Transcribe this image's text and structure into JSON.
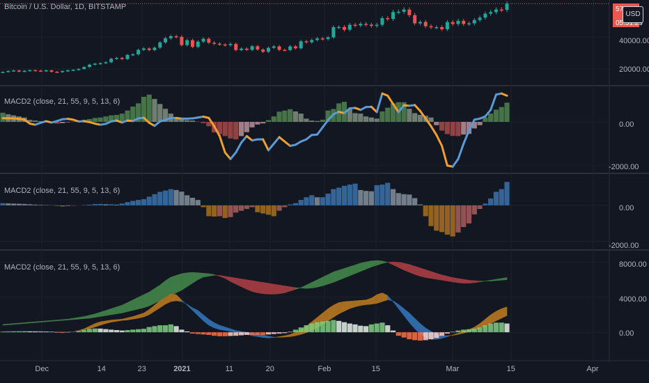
{
  "colors": {
    "background": "#131722",
    "grid": "#1e222d",
    "separator": "#2a2e39",
    "candle_up": "#26a69a",
    "candle_down": "#ef5350",
    "macd_blue": "#5b9bd5",
    "macd_orange": "#f0a030",
    "hist_green": "#5a9a5a",
    "hist_red": "#c0504d",
    "price_tag": "#f05650"
  },
  "header": {
    "symbol_title": "Bitcoin / U.S. Dollar, 1D, BITSTAMP",
    "price_tag_top": "57..25",
    "price_tag_bottom": "05:51:29",
    "currency_badge": "USD"
  },
  "panes": [
    {
      "title": "",
      "ticks": [
        "40000.00",
        "20000.00"
      ]
    },
    {
      "title": "MACD2 (close, 21, 55, 9, 5, 13, 6)",
      "ticks": [
        "0.00",
        "-2000.00"
      ]
    },
    {
      "title": "MACD2 (close, 21, 55, 9, 5, 13, 6)",
      "ticks": [
        "0.00",
        "-2000.00"
      ]
    },
    {
      "title": "MACD2 (close, 21, 55, 9, 5, 13, 6)",
      "ticks": [
        "8000.00",
        "4000.00",
        "0.00"
      ]
    }
  ],
  "time_axis": [
    "Dec",
    "14",
    "23",
    "2021",
    "11",
    "20",
    "Feb",
    "15",
    "Mar",
    "15",
    "Apr"
  ],
  "chart_data": [
    {
      "type": "candlestick",
      "title": "Bitcoin / U.S. Dollar, 1D, BITSTAMP",
      "ylim": [
        10000,
        60000
      ],
      "x_ticks": [
        "Dec",
        "14",
        "23",
        "2021",
        "11",
        "20",
        "Feb",
        "15",
        "Mar",
        "15",
        "Apr"
      ],
      "close": [
        18200,
        18800,
        19100,
        18400,
        18900,
        19300,
        19000,
        18700,
        19200,
        18300,
        18100,
        18700,
        19200,
        19500,
        20100,
        21300,
        22800,
        23400,
        23700,
        24300,
        26500,
        27000,
        26300,
        28900,
        29300,
        32100,
        33000,
        32000,
        33500,
        36800,
        39400,
        40700,
        40300,
        35100,
        38200,
        34000,
        37300,
        39100,
        36600,
        36000,
        35500,
        35100,
        35800,
        32000,
        32900,
        32100,
        34400,
        32300,
        30900,
        33400,
        34300,
        32100,
        32000,
        34300,
        33100,
        37500,
        36900,
        38300,
        39300,
        38900,
        40000,
        46400,
        46500,
        44800,
        47900,
        47500,
        48500,
        48000,
        47200,
        47900,
        52100,
        51600,
        55900,
        56100,
        57500,
        54000,
        48800,
        49700,
        47000,
        46300,
        46400,
        45100,
        49600,
        48400,
        50400,
        48400,
        48800,
        50900,
        52400,
        54900,
        55900,
        57500,
        57300,
        61200
      ]
    },
    {
      "type": "line+histogram",
      "title": "MACD2 (close, 21, 55, 9, 5, 13, 6)",
      "ylim": [
        -2200,
        1500
      ],
      "macd": [
        170,
        165,
        160,
        140,
        100,
        -80,
        -130,
        -40,
        30,
        -30,
        40,
        120,
        140,
        100,
        20,
        30,
        -10,
        -80,
        -130,
        -90,
        20,
        60,
        -30,
        60,
        40,
        160,
        190,
        -40,
        -180,
        20,
        90,
        180,
        180,
        150,
        150,
        160,
        200,
        240,
        180,
        -200,
        -650,
        -1400,
        -1700,
        -1400,
        -950,
        -650,
        -850,
        -800,
        -800,
        -1300,
        -1000,
        -700,
        -900,
        -1100,
        -1050,
        -900,
        -800,
        -600,
        -580,
        -250,
        80,
        350,
        460,
        400,
        620,
        640,
        550,
        680,
        690,
        450,
        1300,
        1200,
        820,
        450,
        760,
        740,
        770,
        500,
        150,
        -200,
        -600,
        -1100,
        -2000,
        -2050,
        -1700,
        -1000,
        -400,
        100,
        150,
        250,
        550,
        1250,
        1300,
        1200
      ],
      "histogram": [
        420,
        350,
        300,
        250,
        200,
        90,
        60,
        30,
        -10,
        -50,
        -80,
        -60,
        -20,
        10,
        50,
        100,
        130,
        180,
        200,
        250,
        300,
        320,
        380,
        520,
        700,
        850,
        1150,
        1250,
        1050,
        820,
        600,
        380,
        200,
        110,
        80,
        60,
        10,
        -60,
        -200,
        -480,
        -560,
        -650,
        -760,
        -800,
        -650,
        -470,
        -250,
        -120,
        -70,
        80,
        250,
        470,
        520,
        580,
        480,
        380,
        150,
        60,
        40,
        100,
        520,
        590,
        850,
        920,
        600,
        400,
        380,
        250,
        200,
        150,
        480,
        650,
        850,
        900,
        900,
        600,
        400,
        320,
        280,
        200,
        -150,
        -400,
        -560,
        -640,
        -650,
        -580,
        -550,
        -300,
        -150,
        200,
        380,
        560,
        680,
        880
      ]
    },
    {
      "type": "histogram",
      "title": "MACD2 (close, 21, 55, 9, 5, 13, 6)",
      "ylim": [
        -2200,
        1500
      ],
      "values": [
        120,
        110,
        100,
        90,
        80,
        60,
        40,
        30,
        20,
        10,
        -30,
        -60,
        -40,
        -20,
        0,
        20,
        40,
        70,
        80,
        60,
        60,
        40,
        100,
        180,
        250,
        300,
        340,
        480,
        620,
        750,
        820,
        900,
        850,
        760,
        560,
        420,
        300,
        -100,
        -600,
        -620,
        -600,
        -700,
        -650,
        -400,
        -300,
        -200,
        -100,
        -380,
        -450,
        -520,
        -600,
        -300,
        -100,
        50,
        120,
        300,
        450,
        560,
        450,
        450,
        650,
        900,
        980,
        1080,
        1150,
        1200,
        850,
        800,
        780,
        1120,
        1150,
        1250,
        900,
        680,
        620,
        600,
        400,
        50,
        -600,
        -1150,
        -1400,
        -1480,
        -1620,
        -1720,
        -1500,
        -1200,
        -1000,
        -500,
        -200,
        100,
        380,
        750,
        900,
        1300
      ]
    },
    {
      "type": "area+histogram",
      "title": "MACD2 (close, 21, 55, 9, 5, 13, 6)",
      "ylim": [
        -1500,
        9000
      ],
      "slow_fast": [
        [
          800,
          900
        ],
        [
          850,
          950
        ],
        [
          900,
          1000
        ],
        [
          950,
          1050
        ],
        [
          1000,
          1100
        ],
        [
          1050,
          1150
        ],
        [
          1100,
          1200
        ],
        [
          1150,
          1250
        ],
        [
          1200,
          1300
        ],
        [
          1250,
          1350
        ],
        [
          1300,
          1400
        ],
        [
          1350,
          1450
        ],
        [
          1400,
          1500
        ],
        [
          1450,
          1600
        ],
        [
          1500,
          1700
        ],
        [
          1550,
          1800
        ],
        [
          1600,
          1950
        ],
        [
          1700,
          2100
        ],
        [
          1800,
          2300
        ],
        [
          1900,
          2500
        ],
        [
          2000,
          2700
        ],
        [
          2100,
          2900
        ],
        [
          2200,
          3100
        ],
        [
          2350,
          3400
        ],
        [
          2500,
          3700
        ],
        [
          2650,
          4000
        ],
        [
          2800,
          4300
        ],
        [
          3000,
          4600
        ],
        [
          3300,
          5000
        ],
        [
          3600,
          5400
        ],
        [
          3900,
          5900
        ],
        [
          4200,
          6300
        ],
        [
          4500,
          6500
        ],
        [
          4800,
          6700
        ],
        [
          5200,
          6800
        ],
        [
          5600,
          6850
        ],
        [
          6000,
          6800
        ],
        [
          6300,
          6750
        ],
        [
          6400,
          6700
        ],
        [
          6500,
          6600
        ],
        [
          6500,
          6400
        ],
        [
          6400,
          6150
        ],
        [
          6300,
          5800
        ],
        [
          6200,
          5500
        ],
        [
          6100,
          5200
        ],
        [
          6000,
          4900
        ],
        [
          5900,
          4650
        ],
        [
          5800,
          4500
        ],
        [
          5700,
          4400
        ],
        [
          5600,
          4350
        ],
        [
          5500,
          4350
        ],
        [
          5400,
          4400
        ],
        [
          5300,
          4500
        ],
        [
          5200,
          4700
        ],
        [
          5100,
          4900
        ],
        [
          5050,
          5100
        ],
        [
          5000,
          5400
        ],
        [
          5050,
          5700
        ],
        [
          5150,
          6000
        ],
        [
          5300,
          6300
        ],
        [
          5500,
          6600
        ],
        [
          5700,
          6900
        ],
        [
          5950,
          7100
        ],
        [
          6200,
          7300
        ],
        [
          6450,
          7500
        ],
        [
          6700,
          7700
        ],
        [
          6950,
          7900
        ],
        [
          7200,
          8050
        ],
        [
          7450,
          8150
        ],
        [
          7650,
          8200
        ],
        [
          7850,
          8150
        ],
        [
          8000,
          8000
        ],
        [
          8050,
          7700
        ],
        [
          8000,
          7400
        ],
        [
          7900,
          7100
        ],
        [
          7750,
          6850
        ],
        [
          7550,
          6600
        ],
        [
          7350,
          6400
        ],
        [
          7150,
          6250
        ],
        [
          6950,
          6150
        ],
        [
          6750,
          6050
        ],
        [
          6550,
          5950
        ],
        [
          6400,
          5850
        ],
        [
          6250,
          5750
        ],
        [
          6150,
          5650
        ],
        [
          6050,
          5600
        ],
        [
          5950,
          5600
        ],
        [
          5900,
          5650
        ],
        [
          5850,
          5750
        ],
        [
          5850,
          5850
        ],
        [
          5850,
          5950
        ],
        [
          5900,
          6050
        ],
        [
          5950,
          6150
        ],
        [
          6000,
          6250
        ]
      ],
      "macd_signal": [
        [
          60,
          80
        ],
        [
          70,
          90
        ],
        [
          80,
          100
        ],
        [
          90,
          110
        ],
        [
          100,
          120
        ],
        [
          90,
          110
        ],
        [
          80,
          100
        ],
        [
          70,
          90
        ],
        [
          60,
          80
        ],
        [
          40,
          60
        ],
        [
          20,
          50
        ],
        [
          10,
          40
        ],
        [
          30,
          50
        ],
        [
          70,
          70
        ],
        [
          200,
          120
        ],
        [
          400,
          250
        ],
        [
          700,
          400
        ],
        [
          1000,
          600
        ],
        [
          1200,
          800
        ],
        [
          1300,
          1000
        ],
        [
          1400,
          1150
        ],
        [
          1450,
          1250
        ],
        [
          1500,
          1350
        ],
        [
          1650,
          1400
        ],
        [
          1800,
          1500
        ],
        [
          2000,
          1600
        ],
        [
          2200,
          1750
        ],
        [
          2600,
          2000
        ],
        [
          3100,
          2400
        ],
        [
          3600,
          2800
        ],
        [
          4000,
          3200
        ],
        [
          4400,
          3500
        ],
        [
          4300,
          3600
        ],
        [
          3700,
          3500
        ],
        [
          3100,
          3200
        ],
        [
          2500,
          2800
        ],
        [
          1900,
          2500
        ],
        [
          1300,
          2000
        ],
        [
          800,
          1500
        ],
        [
          500,
          1100
        ],
        [
          300,
          800
        ],
        [
          200,
          600
        ],
        [
          100,
          400
        ],
        [
          0,
          200
        ],
        [
          -150,
          100
        ],
        [
          -250,
          0
        ],
        [
          -400,
          -100
        ],
        [
          -500,
          -200
        ],
        [
          -600,
          -300
        ],
        [
          -650,
          -450
        ],
        [
          -600,
          -550
        ],
        [
          -500,
          -580
        ],
        [
          -400,
          -550
        ],
        [
          -250,
          -500
        ],
        [
          0,
          -400
        ],
        [
          300,
          -250
        ],
        [
          700,
          -50
        ],
        [
          1200,
          200
        ],
        [
          1700,
          500
        ],
        [
          2200,
          900
        ],
        [
          2700,
          1300
        ],
        [
          3100,
          1700
        ],
        [
          3400,
          2100
        ],
        [
          3500,
          2400
        ],
        [
          3550,
          2700
        ],
        [
          3600,
          2900
        ],
        [
          3650,
          3050
        ],
        [
          3700,
          3150
        ],
        [
          3900,
          3200
        ],
        [
          4300,
          3300
        ],
        [
          4500,
          3500
        ],
        [
          4200,
          3700
        ],
        [
          3500,
          3600
        ],
        [
          2700,
          3200
        ],
        [
          1900,
          2700
        ],
        [
          1100,
          2200
        ],
        [
          400,
          1600
        ],
        [
          -200,
          1000
        ],
        [
          -600,
          500
        ],
        [
          -800,
          100
        ],
        [
          -800,
          -200
        ],
        [
          -700,
          -350
        ],
        [
          -500,
          -400
        ],
        [
          -300,
          -350
        ],
        [
          -100,
          -250
        ],
        [
          100,
          -100
        ],
        [
          300,
          50
        ],
        [
          600,
          250
        ],
        [
          1000,
          450
        ],
        [
          1500,
          700
        ],
        [
          2000,
          1000
        ],
        [
          2400,
          1300
        ],
        [
          2700,
          1600
        ],
        [
          2900,
          1900
        ]
      ],
      "histogram": [
        60,
        70,
        80,
        90,
        100,
        90,
        80,
        70,
        60,
        40,
        -60,
        -80,
        -30,
        0,
        120,
        250,
        380,
        430,
        420,
        360,
        300,
        250,
        200,
        250,
        300,
        350,
        400,
        600,
        700,
        800,
        800,
        900,
        700,
        300,
        100,
        -150,
        -200,
        -250,
        -300,
        -400,
        -450,
        -450,
        -420,
        -400,
        -350,
        -300,
        -300,
        -300,
        -300,
        -250,
        -200,
        -150,
        -100,
        50,
        300,
        550,
        800,
        1000,
        1150,
        1250,
        1300,
        1400,
        1300,
        1150,
        1000,
        900,
        750,
        700,
        900,
        1000,
        1100,
        800,
        200,
        -400,
        -600,
        -800,
        -900,
        -950,
        -900,
        -800,
        -650,
        -400,
        -150,
        50,
        200,
        300,
        350,
        400,
        550,
        800,
        1000,
        1100,
        1100,
        1000
      ]
    }
  ]
}
